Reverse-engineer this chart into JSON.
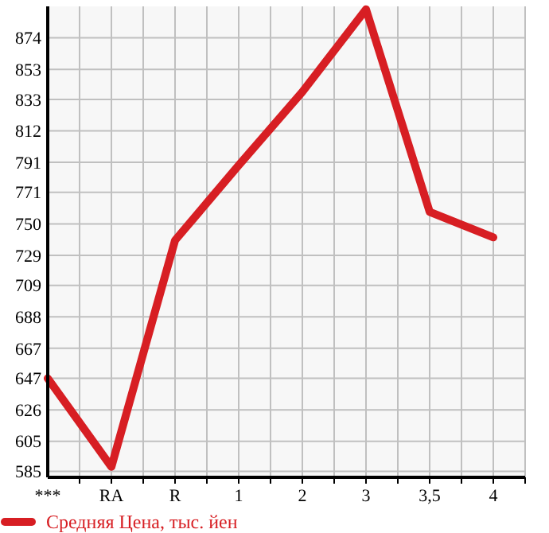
{
  "chart_data": {
    "type": "line",
    "categories": [
      "***",
      "RA",
      "R",
      "1",
      "2",
      "3",
      "3,5",
      "4"
    ],
    "series": [
      {
        "name": "Средняя Цена, тыс. йен",
        "color": "#d71e23",
        "values": [
          647,
          588,
          739,
          789,
          838,
          893,
          758,
          741
        ]
      }
    ],
    "ylim": [
      581,
      895
    ],
    "yticks": [
      585,
      605,
      626,
      647,
      667,
      688,
      709,
      729,
      750,
      771,
      791,
      812,
      833,
      853,
      874
    ],
    "grid": true,
    "legend": "bottom left"
  }
}
